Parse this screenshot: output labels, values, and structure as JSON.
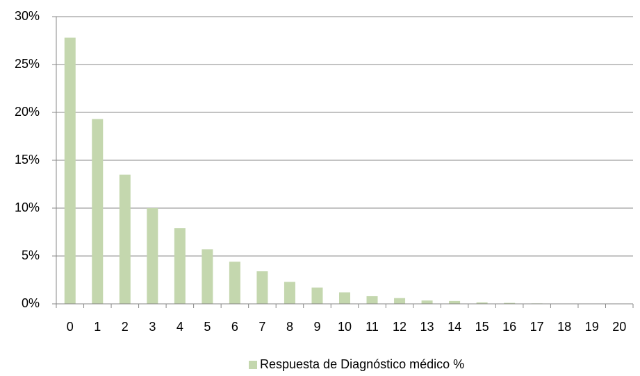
{
  "chart_data": {
    "type": "bar",
    "categories": [
      "0",
      "1",
      "2",
      "3",
      "4",
      "5",
      "6",
      "7",
      "8",
      "9",
      "10",
      "11",
      "12",
      "13",
      "14",
      "15",
      "16",
      "17",
      "18",
      "19",
      "20"
    ],
    "series": [
      {
        "name": "Respuesta de Diagnóstico médico %",
        "color": "#c4d7ae",
        "values": [
          27.8,
          19.3,
          13.5,
          10.0,
          7.9,
          5.7,
          4.4,
          3.4,
          2.3,
          1.7,
          1.2,
          0.8,
          0.6,
          0.35,
          0.3,
          0.15,
          0.1,
          0.05,
          0.03,
          0.02,
          0.01
        ]
      }
    ],
    "ylim": [
      0,
      30
    ],
    "yticks": [
      {
        "value": 0,
        "label": "0%"
      },
      {
        "value": 5,
        "label": "5%"
      },
      {
        "value": 10,
        "label": "10%"
      },
      {
        "value": 15,
        "label": "15%"
      },
      {
        "value": 20,
        "label": "20%"
      },
      {
        "value": 25,
        "label": "25%"
      },
      {
        "value": 30,
        "label": "30%"
      }
    ],
    "grid": true,
    "legend": "bottom"
  }
}
